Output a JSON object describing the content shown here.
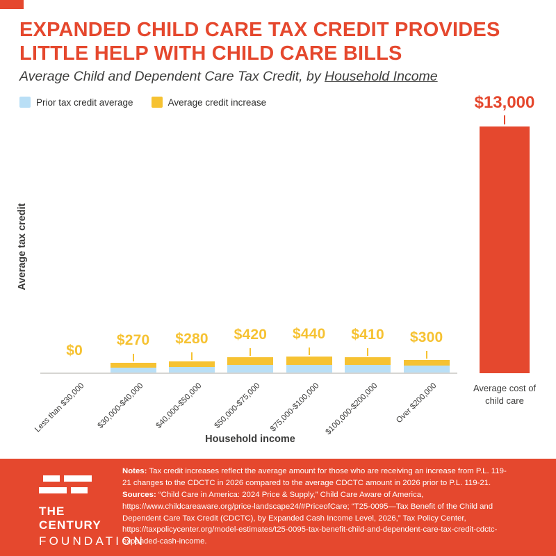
{
  "colors": {
    "red": "#E5482E",
    "yellow": "#F6C232",
    "light_blue": "#B9DFF6",
    "text_dark": "#3B3B3A",
    "axis_line": "#D6D5D2"
  },
  "header": {
    "title": "EXPANDED CHILD CARE TAX CREDIT PROVIDES LITTLE HELP WITH CHILD CARE BILLS",
    "subtitle_prefix": "Average Child and Dependent Care Tax Credit, by ",
    "subtitle_underlined": "Household Income"
  },
  "chart_data": {
    "type": "bar",
    "title": "Average Child and Dependent Care Tax Credit, by Household Income",
    "categories": [
      "Less than $30,000",
      "$30,000-$40,000",
      "$40,000-$50,000",
      "$50,000-$75,000",
      "$75,000-$100,000",
      "$100,000-$200,000",
      "Over $200,000"
    ],
    "series": [
      {
        "name": "Prior tax credit average",
        "color": "#B9DFF6",
        "estimated": true,
        "values": [
          0,
          300,
          330,
          430,
          450,
          430,
          400
        ]
      },
      {
        "name": "Average credit increase",
        "color": "#F6C232",
        "values": [
          0,
          270,
          280,
          420,
          440,
          410,
          300
        ]
      }
    ],
    "value_labels": [
      "$0",
      "$270",
      "$280",
      "$420",
      "$440",
      "$410",
      "$300"
    ],
    "comparison_bar": {
      "label": "Average cost of child care",
      "value": 13000,
      "value_label": "$13,000",
      "color": "#E5482E"
    },
    "xlabel": "Household income",
    "ylabel": "Average tax credit",
    "legend_position": "top-left",
    "grid": false
  },
  "footer": {
    "logo_line1": "THE CENTURY",
    "logo_line2": "FOUNDATION",
    "notes_label": "Notes:",
    "notes_text": "Tax credit increases reflect the average amount for those who are receiving an increase from P.L. 119-21 changes to the CDCTC in 2026 compared to the average CDCTC amount in 2026 prior to P.L. 119-21.",
    "sources_label": "Sources:",
    "sources_text": "“Child Care in America: 2024 Price & Supply,” Child Care Aware of America, https://www.childcareaware.org/price-landscape24/#PriceofCare; “T25-0095—Tax Benefit of the Child and Dependent Care Tax Credit (CDCTC), by Expanded Cash Income Level, 2026,” Tax Policy Center, https://taxpolicycenter.org/model-estimates/t25-0095-tax-benefit-child-and-dependent-care-tax-credit-cdctc-expanded-cash-income."
  }
}
